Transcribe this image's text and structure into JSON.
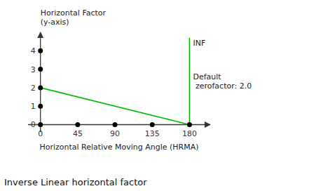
{
  "chart_data": {
    "type": "line",
    "title": "Inverse Linear horizontal factor",
    "x_label": "Horizontal Relative Moving Angle (HRMA)",
    "y_label": [
      "Horizontal Factor",
      "(y-axis)"
    ],
    "xlim": [
      -15,
      205
    ],
    "ylim": [
      -0.4,
      5.0
    ],
    "xticks": [
      0,
      45,
      90,
      135,
      180
    ],
    "yticks": [
      0,
      1,
      2,
      3,
      4
    ],
    "grid": false,
    "series": [
      {
        "type": "line",
        "color": "#00bb00",
        "x": [
          0,
          180
        ],
        "values": [
          2,
          0
        ]
      },
      {
        "type": "line",
        "color": "#00bb00",
        "x": [
          180,
          180
        ],
        "values": [
          0,
          4.7
        ]
      },
      {
        "type": "scatter",
        "color": "#000000",
        "marker": "circle",
        "x": [
          0,
          0,
          0,
          0,
          0,
          45,
          90,
          135,
          180
        ],
        "values": [
          0,
          1,
          2,
          3,
          4,
          0,
          0,
          0,
          0
        ]
      }
    ],
    "annotations": [
      "INF",
      "Default\n zerofactor: 2.0"
    ]
  }
}
